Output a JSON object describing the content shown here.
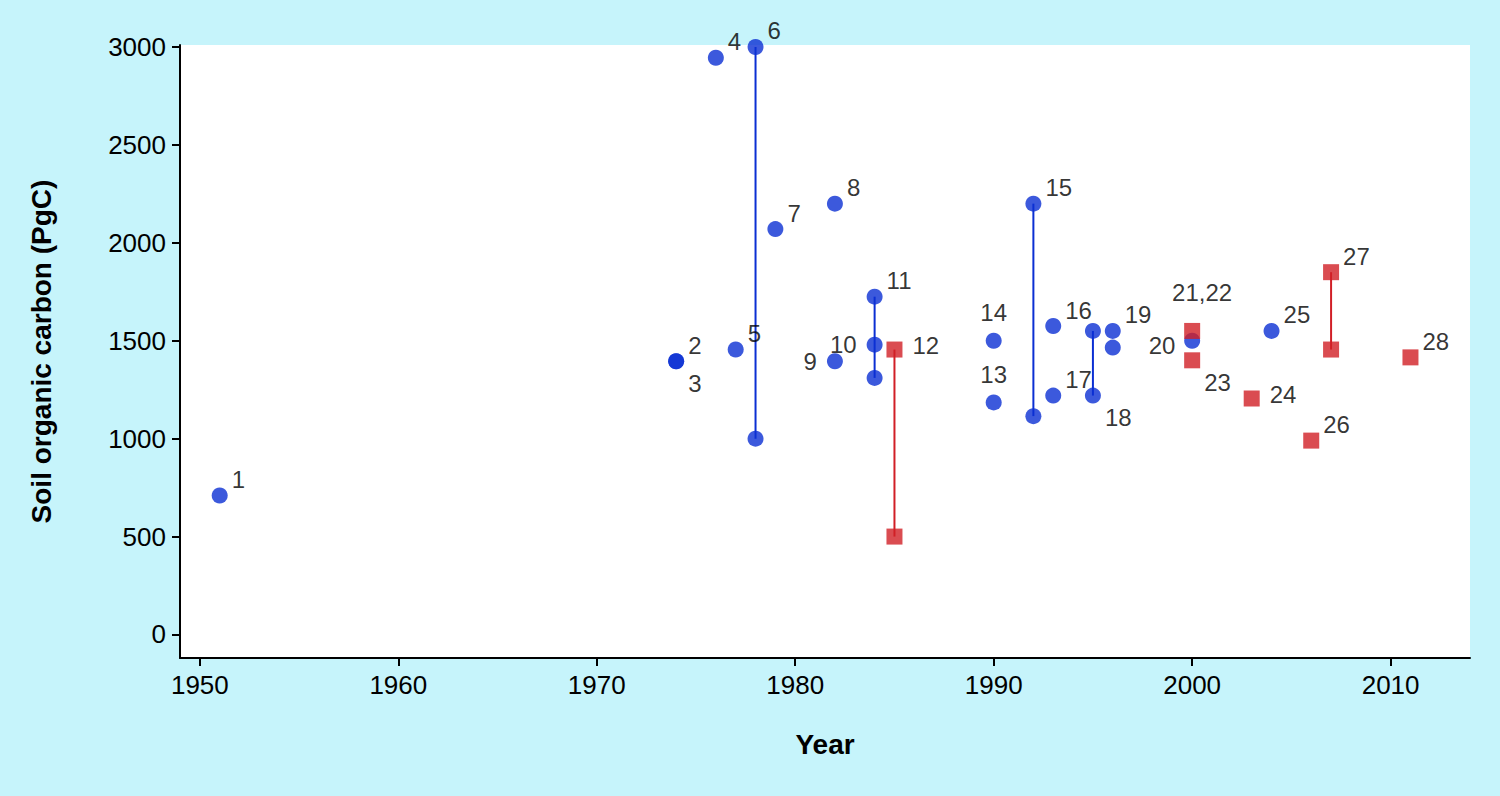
{
  "chart_data": {
    "type": "scatter",
    "xlabel": "Year",
    "ylabel": "Soil organic carbon (PgC)",
    "xlim": [
      1949,
      2014
    ],
    "xticks": [
      1950,
      1960,
      1970,
      1980,
      1990,
      2000,
      2010
    ],
    "ylim": [
      -120,
      3010
    ],
    "yticks": [
      0,
      500,
      1000,
      1500,
      2000,
      2500,
      3000
    ],
    "grid": false,
    "series": [
      {
        "color": "#0b2fd3",
        "marker": "circle",
        "x": [
          1951,
          1974,
          1974,
          1976,
          1977,
          1978,
          1978,
          1979,
          1982,
          1982,
          1984,
          1984,
          1984,
          1990,
          1990,
          1992,
          1992,
          1993,
          1993,
          1995,
          1995,
          1996,
          1996,
          2000,
          2004
        ],
        "values": [
          710,
          1395,
          1395,
          2945,
          1455,
          3000,
          1000,
          2070,
          2200,
          1395,
          1725,
          1480,
          1310,
          1185,
          1500,
          2200,
          1115,
          1575,
          1220,
          1550,
          1220,
          1550,
          1465,
          1500,
          1550
        ],
        "point_labels": [
          "1",
          "2",
          "3",
          "4",
          "5",
          "6",
          null,
          "7",
          "8",
          "9",
          "11",
          "10",
          null,
          "13",
          "14",
          "15",
          null,
          "16",
          "17",
          null,
          "18",
          "19",
          "20",
          "21,22",
          "25"
        ],
        "ranges": [
          {
            "x": 1978,
            "low": 1000,
            "high": 3000
          },
          {
            "x": 1984,
            "low": 1310,
            "high": 1725
          },
          {
            "x": 1992,
            "low": 1115,
            "high": 2200
          },
          {
            "x": 1995,
            "low": 1220,
            "high": 1550
          }
        ]
      },
      {
        "color": "#d11f26",
        "marker": "square",
        "x": [
          1985,
          1985,
          2000,
          2000,
          2003,
          2006,
          2007,
          2007,
          2011
        ],
        "values": [
          1455,
          500,
          1550,
          1400,
          1205,
          990,
          1850,
          1455,
          1415
        ],
        "point_labels": [
          "12",
          null,
          null,
          "23",
          "24",
          "26",
          "27",
          null,
          "28"
        ],
        "ranges": [
          {
            "x": 1985,
            "low": 500,
            "high": 1455
          },
          {
            "x": 2007,
            "low": 1455,
            "high": 1850
          }
        ]
      }
    ]
  }
}
